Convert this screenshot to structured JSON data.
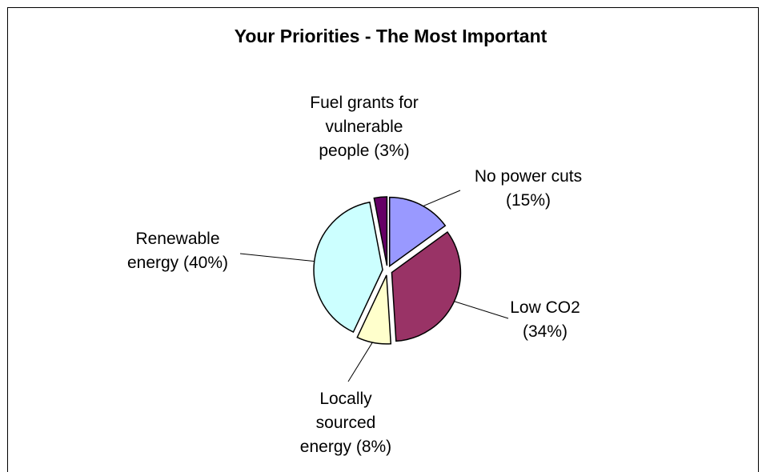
{
  "chart_data": {
    "type": "pie",
    "title": "Your Priorities - The Most Important",
    "slices": [
      {
        "label_lines": [
          "No power cuts",
          "(15%)"
        ],
        "value": 15,
        "color": "#9999ff"
      },
      {
        "label_lines": [
          "Low CO2",
          "(34%)"
        ],
        "value": 34,
        "color": "#993366"
      },
      {
        "label_lines": [
          "Locally",
          "sourced",
          "energy (8%)"
        ],
        "value": 8,
        "color": "#ffffcc"
      },
      {
        "label_lines": [
          "Renewable",
          "energy (40%)"
        ],
        "value": 40,
        "color": "#ccffff"
      },
      {
        "label_lines": [
          "Fuel grants for",
          "vulnerable",
          "people (3%)"
        ],
        "value": 3,
        "color": "#660066"
      }
    ]
  }
}
